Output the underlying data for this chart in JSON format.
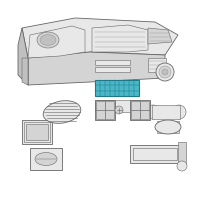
{
  "bg_color": "#ffffff",
  "border_color": "#cccccc",
  "dark_gray": "#666666",
  "mid_gray": "#999999",
  "light_gray": "#bbbbbb",
  "fill_light": "#e8e8e8",
  "fill_mid": "#d4d4d4",
  "fill_dark": "#c0c0c0",
  "teal_color": "#4ab8c8",
  "teal_dark": "#1e7a8a",
  "teal_fill": "#5dc8d8",
  "white": "#ffffff"
}
